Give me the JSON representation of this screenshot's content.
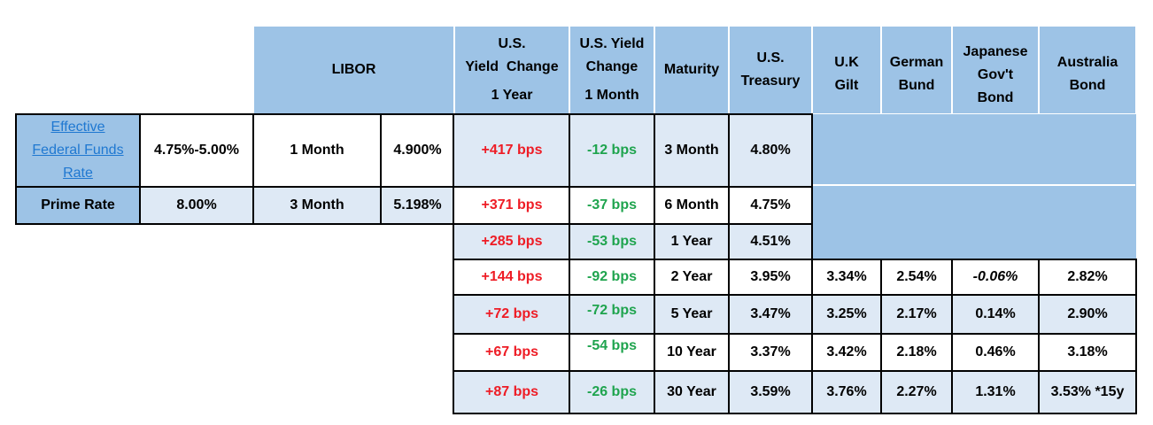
{
  "header": {
    "libor": "LIBOR",
    "yield_change_1y": [
      "U.S.",
      "Yield  Change",
      "1 Year"
    ],
    "yield_change_1m": [
      "U.S. Yield",
      "Change",
      "1 Month"
    ],
    "maturity": "Maturity",
    "us_treasury": [
      "U.S.",
      "Treasury"
    ],
    "uk_gilt": [
      "U.K",
      "Gilt"
    ],
    "german_bund": [
      "German",
      "Bund"
    ],
    "japanese_bond": [
      "Japanese",
      "Gov't",
      "Bond"
    ],
    "australia_bond": [
      "Australia",
      "Bond"
    ]
  },
  "policy_rates": [
    {
      "label_lines": [
        "Effective",
        "Federal Funds",
        "Rate"
      ],
      "value": "4.75%-5.00%",
      "libor_term": "1 Month",
      "libor_rate": "4.900%"
    },
    {
      "label": "Prime Rate",
      "value": "8.00%",
      "libor_term": "3 Month",
      "libor_rate": "5.198%"
    }
  ],
  "yield_rows": [
    {
      "chg_1y": "+417 bps",
      "chg_1m": "-12 bps",
      "maturity": "3 Month",
      "treasury": "4.80%",
      "gilt": "",
      "bund": "",
      "jgb": "",
      "aus": ""
    },
    {
      "chg_1y": "+371 bps",
      "chg_1m": "-37 bps",
      "maturity": "6 Month",
      "treasury": "4.75%",
      "gilt": "",
      "bund": "",
      "jgb": "",
      "aus": ""
    },
    {
      "chg_1y": "+285 bps",
      "chg_1m": "-53 bps",
      "maturity": "1 Year",
      "treasury": "4.51%",
      "gilt": "",
      "bund": "",
      "jgb": "",
      "aus": ""
    },
    {
      "chg_1y": "+144 bps",
      "chg_1m": "-92 bps",
      "maturity": "2 Year",
      "treasury": "3.95%",
      "gilt": "3.34%",
      "bund": "2.54%",
      "jgb": "-0.06%",
      "aus": "2.82%"
    },
    {
      "chg_1y": "+72 bps",
      "chg_1m": "-72 bps",
      "maturity": "5 Year",
      "treasury": "3.47%",
      "gilt": "3.25%",
      "bund": "2.17%",
      "jgb": "0.14%",
      "aus": "2.90%"
    },
    {
      "chg_1y": "+67 bps",
      "chg_1m": "-54 bps",
      "maturity": "10 Year",
      "treasury": "3.37%",
      "gilt": "3.42%",
      "bund": "2.18%",
      "jgb": "0.46%",
      "aus": "3.18%"
    },
    {
      "chg_1y": "+87 bps",
      "chg_1m": "-26 bps",
      "maturity": "30 Year",
      "treasury": "3.59%",
      "gilt": "3.76%",
      "bund": "2.27%",
      "jgb": "1.31%",
      "aus": "3.53% *15y"
    }
  ],
  "colors": {
    "header_fill": "#9dc3e6",
    "light_fill": "#dee9f5",
    "positive_change": "#ee1c25",
    "negative_change": "#1fa44e",
    "link": "#1f78d1"
  }
}
